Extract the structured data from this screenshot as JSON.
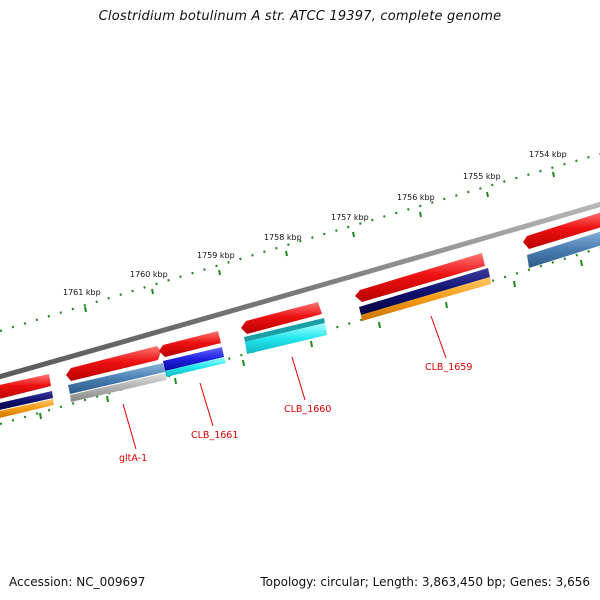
{
  "title": "Clostridium botulinum A str. ATCC 19397, complete genome",
  "ruler": {
    "labels": [
      "1761 kbp",
      "1760 kbp",
      "1759 kbp",
      "1758 kbp",
      "1757 kbp",
      "1756 kbp",
      "1755 kbp",
      "1754 kbp"
    ]
  },
  "genes": [
    {
      "name": "gltA-1"
    },
    {
      "name": "CLB_1661"
    },
    {
      "name": "CLB_1660"
    },
    {
      "name": "CLB_1659"
    }
  ],
  "footer": {
    "accession": "Accession: NC_009697",
    "summary": "Topology: circular; Length: 3,863,450 bp; Genes: 3,656"
  },
  "colors": {
    "backbone": "#808080",
    "gene_cds": "#ee1111",
    "tick": "#1e8a1e",
    "label": "#dd0000",
    "navy": "#101070",
    "orange": "#f59a12",
    "steel": "#4a7fb2",
    "cyan": "#22e6ee",
    "blue": "#1f1fe0",
    "gray": "#b0b0b0"
  }
}
